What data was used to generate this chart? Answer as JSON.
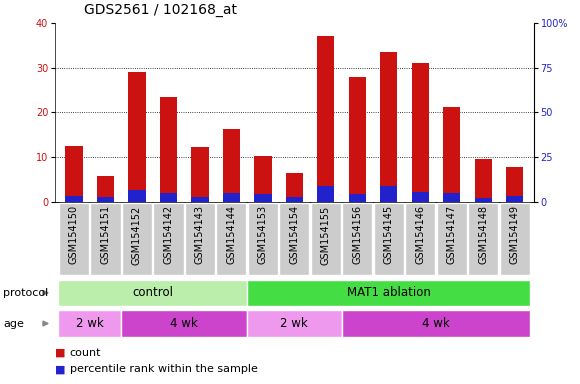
{
  "title": "GDS2561 / 102168_at",
  "samples": [
    "GSM154150",
    "GSM154151",
    "GSM154152",
    "GSM154142",
    "GSM154143",
    "GSM154144",
    "GSM154153",
    "GSM154154",
    "GSM154155",
    "GSM154156",
    "GSM154145",
    "GSM154146",
    "GSM154147",
    "GSM154148",
    "GSM154149"
  ],
  "count_values": [
    12.5,
    5.7,
    29.0,
    23.5,
    12.2,
    16.2,
    10.3,
    6.5,
    37.2,
    28.0,
    33.5,
    31.0,
    21.2,
    9.5,
    7.8
  ],
  "percentile_values": [
    1.3,
    1.1,
    2.7,
    1.9,
    1.1,
    2.0,
    1.8,
    1.0,
    3.5,
    1.8,
    3.5,
    2.2,
    2.0,
    0.9,
    1.2
  ],
  "bar_color_red": "#cc1111",
  "bar_color_blue": "#2222cc",
  "bar_width": 0.55,
  "ylim_left": [
    0,
    40
  ],
  "ylim_right": [
    0,
    100
  ],
  "yticks_left": [
    0,
    10,
    20,
    30,
    40
  ],
  "yticks_right": [
    0,
    25,
    50,
    75,
    100
  ],
  "ytick_labels_right": [
    "0",
    "25",
    "50",
    "75",
    "100%"
  ],
  "grid_color": "#000000",
  "plot_bg_color": "#ffffff",
  "protocol_groups": [
    {
      "label": "control",
      "start": 0,
      "end": 5,
      "color": "#bbeeaa"
    },
    {
      "label": "MAT1 ablation",
      "start": 6,
      "end": 14,
      "color": "#44dd44"
    }
  ],
  "age_groups": [
    {
      "label": "2 wk",
      "start": 0,
      "end": 1,
      "color": "#ee99ee"
    },
    {
      "label": "4 wk",
      "start": 2,
      "end": 5,
      "color": "#cc44cc"
    },
    {
      "label": "2 wk",
      "start": 6,
      "end": 8,
      "color": "#ee99ee"
    },
    {
      "label": "4 wk",
      "start": 9,
      "end": 14,
      "color": "#cc44cc"
    }
  ],
  "legend_items": [
    {
      "label": "count",
      "color": "#cc1111"
    },
    {
      "label": "percentile rank within the sample",
      "color": "#2222cc"
    }
  ],
  "title_fontsize": 10,
  "tick_fontsize": 7,
  "label_fontsize": 8,
  "annotation_fontsize": 8.5,
  "side_label_fontsize": 8
}
